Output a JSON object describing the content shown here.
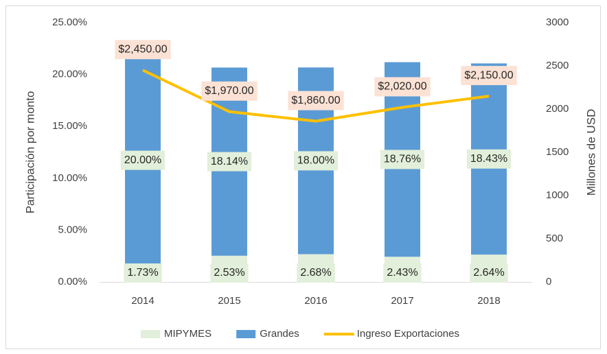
{
  "chart_data": {
    "type": "bar_line",
    "categories": [
      "2014",
      "2015",
      "2016",
      "2017",
      "2018"
    ],
    "y_label": "Participación por monto",
    "y2_label": "Millones de USD",
    "ylim": [
      0,
      25
    ],
    "yticks": [
      {
        "value": 0,
        "label": "0.00%"
      },
      {
        "value": 5,
        "label": "5.00%"
      },
      {
        "value": 10,
        "label": "10.00%"
      },
      {
        "value": 15,
        "label": "15.00%"
      },
      {
        "value": 20,
        "label": "20.00%"
      },
      {
        "value": 25,
        "label": "25.00%"
      }
    ],
    "y2lim": [
      0,
      3000
    ],
    "y2ticks": [
      0,
      500,
      1000,
      1500,
      2000,
      2500,
      3000
    ],
    "legend": "bottom",
    "series": [
      {
        "name": "MIPYMES",
        "type": "bar",
        "color": "#e2efda",
        "values": [
          1.73,
          2.53,
          2.68,
          2.43,
          2.64
        ],
        "value_labels": [
          "1.73%",
          "2.53%",
          "2.68%",
          "2.43%",
          "2.64%"
        ],
        "label_bg": "#e2efda"
      },
      {
        "name": "Grandes",
        "type": "bar",
        "color": "#5b9bd5",
        "values": [
          20.0,
          18.14,
          18.0,
          18.76,
          18.43
        ],
        "value_labels": [
          "20.00%",
          "18.14%",
          "18.00%",
          "18.76%",
          "18.43%"
        ],
        "label_bg": "#e2efda"
      },
      {
        "name": "Ingreso Exportaciones",
        "type": "line",
        "axis": "y2",
        "color": "#ffc000",
        "values": [
          2450,
          1970,
          1860,
          2020,
          2150
        ],
        "value_labels": [
          "$2,450.00",
          "$1,970.00",
          "$1,860.00",
          "$2,020.00",
          "$2,150.00"
        ],
        "label_bg": "#fbe2d5"
      }
    ]
  }
}
